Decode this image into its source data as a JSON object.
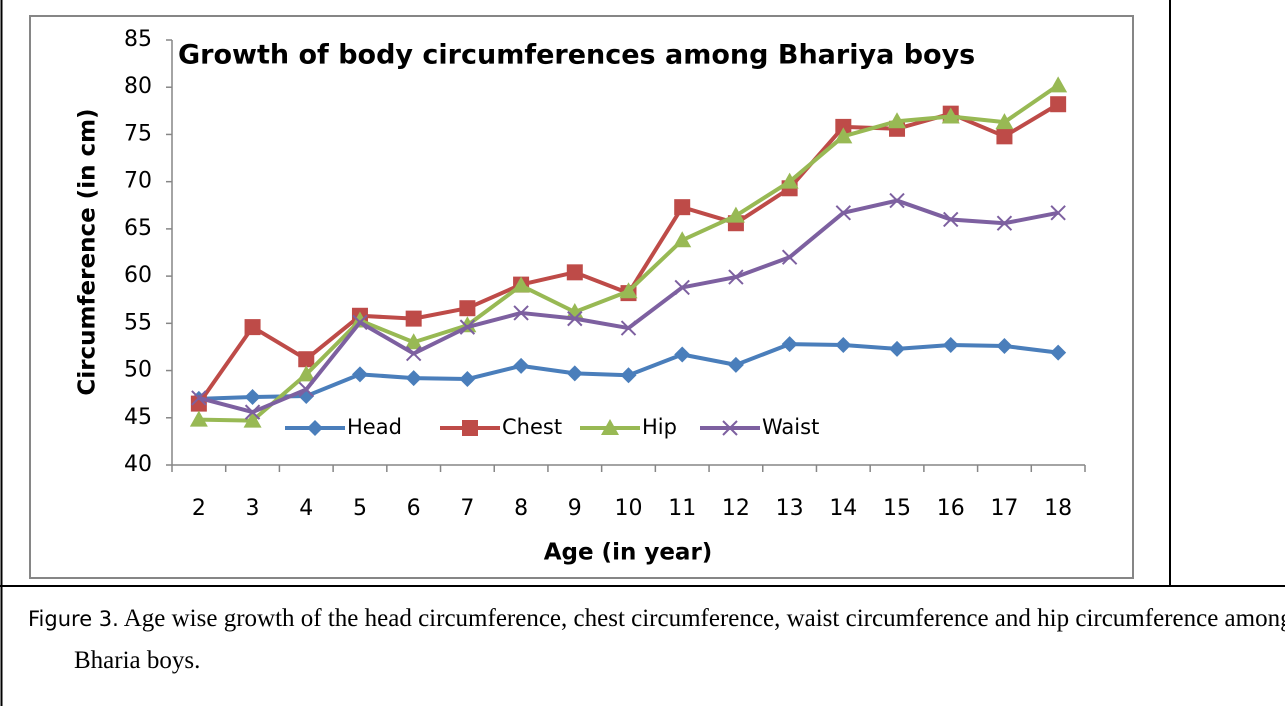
{
  "chart_data": {
    "type": "line",
    "title": "Growth of body circumferences among Bhariya boys",
    "x_label": "Age (in year)",
    "y_label": "Circumference (in cm)",
    "categories": [
      "2",
      "3",
      "4",
      "5",
      "6",
      "7",
      "8",
      "9",
      "10",
      "11",
      "12",
      "13",
      "14",
      "15",
      "16",
      "17",
      "18"
    ],
    "series": [
      {
        "name": "Head",
        "color": "#4a7ebb",
        "marker": "diamond",
        "values": [
          47.0,
          47.2,
          47.3,
          49.6,
          49.2,
          49.1,
          50.5,
          49.7,
          49.5,
          51.7,
          50.6,
          52.8,
          52.7,
          52.3,
          52.7,
          52.6,
          51.9
        ]
      },
      {
        "name": "Chest",
        "color": "#be4b48",
        "marker": "square",
        "values": [
          46.5,
          54.6,
          51.2,
          55.8,
          55.5,
          56.6,
          59.1,
          60.4,
          58.2,
          67.3,
          65.6,
          69.3,
          75.8,
          75.6,
          77.2,
          74.8,
          78.2
        ]
      },
      {
        "name": "Hip",
        "color": "#98b954",
        "marker": "triangle",
        "values": [
          44.8,
          44.7,
          49.6,
          55.3,
          53.0,
          54.8,
          59.0,
          56.2,
          58.4,
          63.8,
          66.4,
          70.0,
          74.8,
          76.4,
          76.9,
          76.3,
          80.2
        ]
      },
      {
        "name": "Waist",
        "color": "#7d60a0",
        "marker": "x",
        "values": [
          47.1,
          45.6,
          48.0,
          55.1,
          51.8,
          54.6,
          56.1,
          55.5,
          54.5,
          58.8,
          59.9,
          62.0,
          66.7,
          68.0,
          66.0,
          65.6,
          66.7
        ]
      }
    ],
    "ylim": [
      40,
      85
    ],
    "yticks": [
      40,
      45,
      50,
      55,
      60,
      65,
      70,
      75,
      80,
      85
    ],
    "grid": false
  },
  "caption": {
    "label": "Figure 3.",
    "text": "Age wise growth of the head circumference, chest circumference, waist circumference and hip circumference among Bharia boys."
  }
}
